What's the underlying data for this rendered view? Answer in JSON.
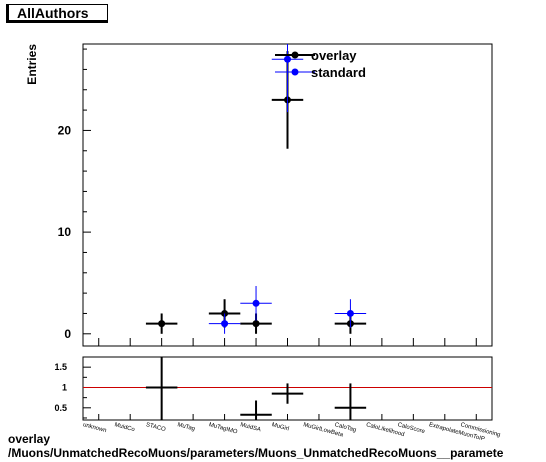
{
  "header": {
    "title": "AllAuthors"
  },
  "caption": {
    "line1": "overlay",
    "line2": "/Muons/UnmatchedRecoMuons/parameters/Muons_UnmatchedRecoMuons__paramete"
  },
  "colors": {
    "overlay": "#000000",
    "standard": "#0000ff",
    "ratio_line": "#cc0000"
  },
  "chart_data": [
    {
      "type": "scatter",
      "ylabel": "Entries",
      "ylim": [
        -1.2,
        28.5
      ],
      "yticks": [
        0,
        10,
        20
      ],
      "categories": [
        "unknown",
        "MuidCo",
        "STACO",
        "MuTag",
        "MuTagIMO",
        "MuidSA",
        "MuGirl",
        "MuGirlLowBeta",
        "CaloTag",
        "CaloLikelihood",
        "CaloScore",
        "ExtrapolateMuonToIP",
        "Commissioning"
      ],
      "legend": {
        "position": "top-right",
        "entries": [
          "overlay",
          "standard"
        ]
      },
      "series": [
        {
          "name": "overlay",
          "points": [
            {
              "x": "STACO",
              "y": 1,
              "err": 1
            },
            {
              "x": "MuTagIMO",
              "y": 2,
              "err": 1.4
            },
            {
              "x": "MuidSA",
              "y": 1,
              "err": 1
            },
            {
              "x": "MuGirl",
              "y": 23,
              "err": 4.8
            },
            {
              "x": "CaloTag",
              "y": 1,
              "err": 1
            }
          ]
        },
        {
          "name": "standard",
          "points": [
            {
              "x": "MuTagIMO",
              "y": 1,
              "err": 1
            },
            {
              "x": "MuidSA",
              "y": 3,
              "err": 1.7
            },
            {
              "x": "MuGirl",
              "y": 27,
              "err": 5.2
            },
            {
              "x": "CaloTag",
              "y": 2,
              "err": 1.4
            }
          ]
        }
      ]
    },
    {
      "type": "scatter",
      "ylim": [
        0.2,
        1.75
      ],
      "yticks": [
        "0.5",
        "1",
        "1.5"
      ],
      "reference_line": 1,
      "points": [
        {
          "x": "STACO",
          "y": 1.0,
          "err": 1.0
        },
        {
          "x": "MuidSA",
          "y": 0.33,
          "err": 0.35
        },
        {
          "x": "MuGirl",
          "y": 0.85,
          "err": 0.25
        },
        {
          "x": "CaloTag",
          "y": 0.5,
          "err": 0.6
        }
      ]
    }
  ]
}
